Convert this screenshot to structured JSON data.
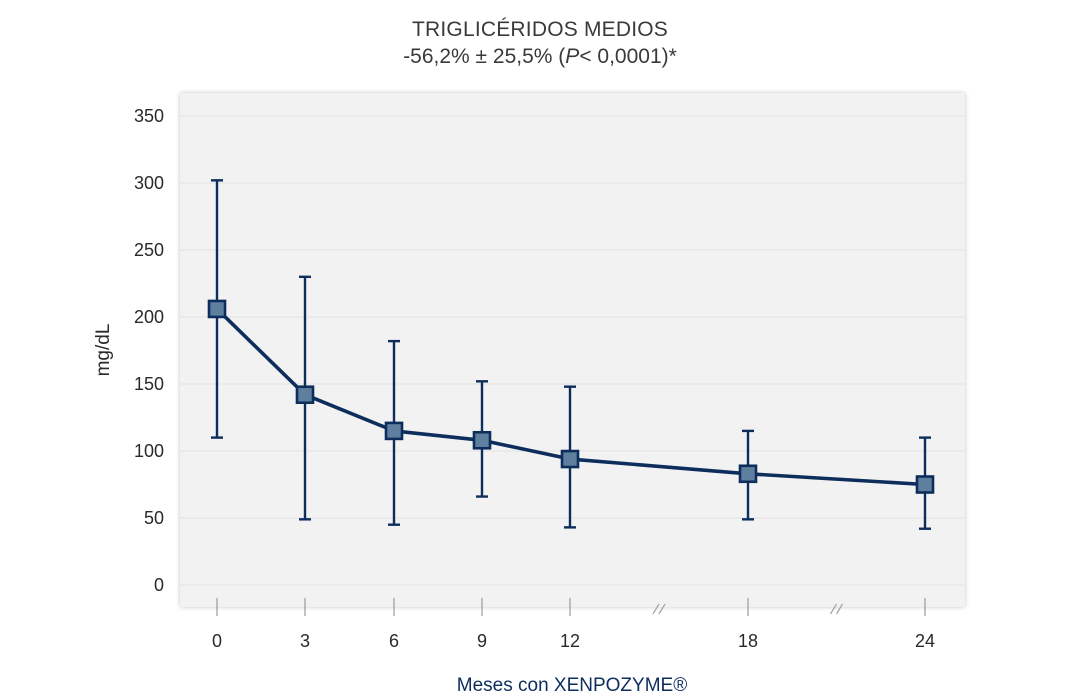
{
  "title_line1": "TRIGLICÉRIDOS MEDIOS",
  "title_line2_pre": "-56,2% ± 25,5% (",
  "title_line2_p": "P",
  "title_line2_post": "< 0,0001)*",
  "colors": {
    "line": "#0d2e5c",
    "marker_fill": "#5f7f9f",
    "plot_bg": "#f2f2f2",
    "grid": "#ffffff"
  },
  "chart_data": {
    "type": "line",
    "title": "TRIGLICÉRIDOS MEDIOS -56,2% ± 25,5% (P< 0,0001)*",
    "xlabel": "Meses con XENPOZYME®",
    "ylabel": "mg/dL",
    "ylim": [
      0,
      350
    ],
    "y_ticks": [
      "0",
      "50",
      "100",
      "150",
      "200",
      "250",
      "300",
      "350"
    ],
    "categories": [
      "0",
      "3",
      "6",
      "9",
      "12",
      "18",
      "24"
    ],
    "axis_breaks_between": [
      [
        "12",
        "18"
      ],
      [
        "18",
        "24"
      ]
    ],
    "values": [
      206,
      142,
      115,
      108,
      94,
      83,
      75
    ],
    "error_upper": [
      302,
      230,
      182,
      152,
      148,
      115,
      110
    ],
    "error_lower": [
      110,
      49,
      45,
      66,
      43,
      49,
      42
    ],
    "grid": true,
    "legend": "none"
  }
}
